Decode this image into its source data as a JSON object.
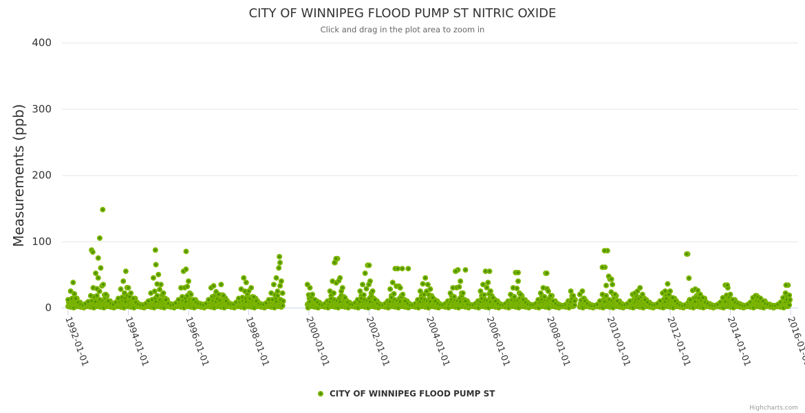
{
  "chart_data": {
    "type": "scatter",
    "title": "CITY OF WINNIPEG FLOOD PUMP ST NITRIC OXIDE",
    "subtitle": "Click and drag in the plot area to zoom in",
    "xlabel": "",
    "ylabel": "Measurements (ppb)",
    "xlim": [
      1991.85,
      2016.25
    ],
    "ylim": [
      0,
      400
    ],
    "grid": true,
    "y_ticks": [
      "0",
      "100",
      "200",
      "300",
      "400"
    ],
    "y_tick_values": [
      0,
      100,
      200,
      300,
      400
    ],
    "x_ticks": [
      "1992-01-01",
      "1994-01-01",
      "1996-01-01",
      "1998-01-01",
      "2000-01-01",
      "2002-01-01",
      "2004-01-01",
      "2006-01-01",
      "2008-01-01",
      "2010-01-01",
      "2012-01-01",
      "2014-01-01",
      "2016-01-01"
    ],
    "x_tick_values": [
      1992,
      1994,
      1996,
      1998,
      2000,
      2002,
      2004,
      2006,
      2008,
      2010,
      2012,
      2014,
      2016
    ],
    "legend": {
      "position": "bottom-center",
      "label": "CITY OF WINNIPEG FLOOD PUMP ST"
    },
    "series": [
      {
        "name": "CITY OF WINNIPEG FLOOD PUMP ST",
        "color": "#7cb500",
        "segments": [
          {
            "start": 1992.0,
            "step_months": 1,
            "values": [
              12,
              25,
              38,
              14,
              8,
              5,
              4,
              6,
              9,
              18,
              30,
              52,
              45,
              60,
              35,
              20,
              10,
              6,
              5,
              8,
              14,
              28,
              40,
              55,
              30,
              22,
              14,
              8,
              5,
              4,
              4,
              6,
              10,
              22,
              45,
              65,
              50,
              35,
              22,
              12,
              6,
              4,
              5,
              7,
              12,
              30,
              55,
              58,
              40,
              20,
              12,
              8,
              6,
              5,
              4,
              6,
              12,
              30,
              33,
              24,
              20,
              35,
              18,
              10,
              6,
              5,
              5,
              8,
              14,
              28,
              45,
              38,
              25,
              30,
              16,
              10,
              6,
              5,
              5,
              7,
              12,
              22,
              35,
              45,
              60,
              40
            ]
          },
          {
            "start": 1999.95,
            "step_months": 1,
            "values": [
              35,
              30,
              20,
              12,
              8,
              5,
              4,
              6,
              10,
              25,
              40,
              68,
              74,
              45,
              30,
              15,
              8,
              5,
              5,
              7,
              12,
              25,
              35,
              52,
              64,
              40,
              25,
              12,
              6,
              4,
              4,
              6,
              10,
              28,
              38,
              59,
              59,
              30,
              20,
              10,
              6,
              4,
              4,
              6,
              12,
              25,
              36,
              45,
              35,
              28,
              15,
              10,
              6,
              4,
              4,
              6,
              10,
              22,
              30,
              55,
              57,
              40,
              22,
              10,
              5,
              4,
              4,
              6,
              10,
              25,
              35,
              55,
              38,
              25,
              15,
              10,
              6,
              4,
              4,
              6,
              10,
              20,
              30,
              53,
              40,
              20,
              12,
              8,
              5,
              4,
              4,
              6,
              12,
              22,
              30,
              52,
              25,
              18,
              10,
              6,
              4,
              3,
              3,
              5,
              10,
              25,
              18
            ]
          },
          {
            "start": 2009.0,
            "step_months": 1,
            "values": [
              20,
              25,
              10,
              6,
              4,
              3,
              3,
              5,
              10,
              20,
              61,
              86,
              43,
              35,
              20,
              10,
              6,
              4,
              4,
              6,
              10,
              20,
              22,
              25,
              30,
              20,
              12,
              8,
              5,
              4,
              4,
              6,
              10,
              22,
              25,
              36,
              25,
              15,
              10,
              6,
              4,
              3,
              4,
              81,
              12,
              26,
              28,
              26,
              20,
              15,
              8,
              6,
              4,
              3,
              3,
              5,
              8,
              15,
              34,
              30,
              20,
              12,
              8,
              6,
              4,
              3,
              3,
              5,
              8,
              15,
              18,
              16,
              14,
              10,
              6,
              5,
              3,
              3,
              3,
              5,
              8,
              15,
              22,
              34
            ]
          }
        ],
        "low_cycle": [
          2,
          8,
          4,
          12,
          1,
          6,
          3,
          10,
          5,
          0,
          7,
          14,
          9,
          2,
          18,
          4
        ],
        "peaks": [
          [
            1992.78,
            87
          ],
          [
            1992.82,
            84
          ],
          [
            1993.0,
            75
          ],
          [
            1993.05,
            105
          ],
          [
            1993.15,
            148
          ],
          [
            1994.9,
            87
          ],
          [
            1995.92,
            85
          ],
          [
            1999.02,
            77
          ],
          [
            1999.04,
            68
          ],
          [
            2000.9,
            74
          ],
          [
            2000.85,
            68
          ],
          [
            2002.0,
            64
          ],
          [
            2003.1,
            59
          ],
          [
            2003.3,
            59
          ],
          [
            2004.88,
            55
          ],
          [
            2005.2,
            57
          ],
          [
            2006.0,
            55
          ],
          [
            2006.95,
            53
          ],
          [
            2007.9,
            52
          ],
          [
            2009.75,
            61
          ],
          [
            2009.82,
            86
          ],
          [
            2010.05,
            43
          ],
          [
            2012.55,
            81
          ],
          [
            2013.9,
            34
          ],
          [
            2015.85,
            34
          ]
        ]
      }
    ]
  },
  "credits": "Highcharts.com"
}
